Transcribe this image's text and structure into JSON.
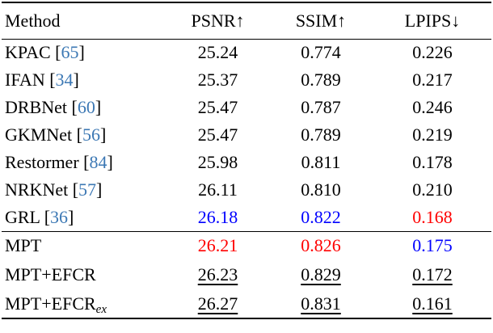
{
  "colors": {
    "text": "#000000",
    "citation": "#3c78b4",
    "best_red": "#ff0000",
    "second_blue": "#0000ff",
    "background": "#ffffff"
  },
  "citation_brackets": {
    "open": "[",
    "close": "]"
  },
  "table": {
    "headers": [
      {
        "label": "Method",
        "align": "left"
      },
      {
        "label": "PSNR↑",
        "align": "center"
      },
      {
        "label": "SSIM↑",
        "align": "center"
      },
      {
        "label": "LPIPS↓",
        "align": "center"
      }
    ],
    "groups": [
      {
        "name": "prior-methods",
        "rows": [
          {
            "method": "KPAC",
            "cite": "65",
            "cells": [
              {
                "text": "25.24"
              },
              {
                "text": "0.774"
              },
              {
                "text": "0.226"
              }
            ]
          },
          {
            "method": "IFAN",
            "cite": "34",
            "cells": [
              {
                "text": "25.37"
              },
              {
                "text": "0.789"
              },
              {
                "text": "0.217"
              }
            ]
          },
          {
            "method": "DRBNet",
            "cite": "60",
            "cells": [
              {
                "text": "25.47"
              },
              {
                "text": "0.787"
              },
              {
                "text": "0.246"
              }
            ]
          },
          {
            "method": "GKMNet",
            "cite": "56",
            "cells": [
              {
                "text": "25.47"
              },
              {
                "text": "0.789"
              },
              {
                "text": "0.219"
              }
            ]
          },
          {
            "method": "Restormer",
            "cite": "84",
            "cells": [
              {
                "text": "25.98"
              },
              {
                "text": "0.811"
              },
              {
                "text": "0.178"
              }
            ]
          },
          {
            "method": "NRKNet",
            "cite": "57",
            "cells": [
              {
                "text": "26.11"
              },
              {
                "text": "0.810"
              },
              {
                "text": "0.210"
              }
            ]
          },
          {
            "method": "GRL",
            "cite": "36",
            "cells": [
              {
                "text": "26.18",
                "color": "blue"
              },
              {
                "text": "0.822",
                "color": "blue"
              },
              {
                "text": "0.168",
                "color": "red"
              }
            ]
          }
        ]
      },
      {
        "name": "ours",
        "rows": [
          {
            "method": "MPT",
            "cells": [
              {
                "text": "26.21",
                "color": "red"
              },
              {
                "text": "0.826",
                "color": "red"
              },
              {
                "text": "0.175",
                "color": "blue"
              }
            ]
          },
          {
            "method": "MPT+EFCR",
            "cells": [
              {
                "text": "26.23",
                "underline": true
              },
              {
                "text": "0.829",
                "underline": true
              },
              {
                "text": "0.172",
                "underline": true
              }
            ]
          },
          {
            "method": "MPT+EFCR",
            "subscript": "ex",
            "cells": [
              {
                "text": "26.27",
                "underline": true
              },
              {
                "text": "0.831",
                "underline": true
              },
              {
                "text": "0.161",
                "underline": true
              }
            ]
          }
        ]
      }
    ]
  }
}
